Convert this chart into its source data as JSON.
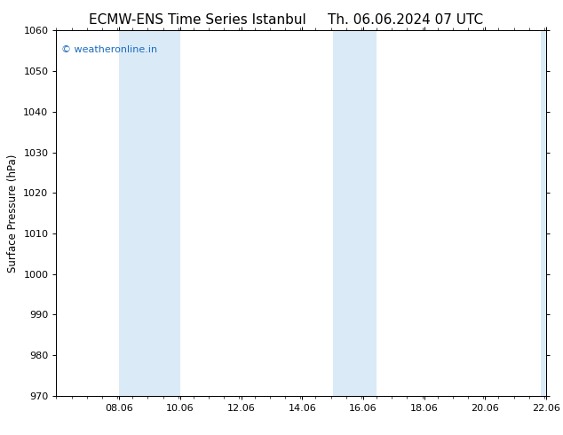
{
  "title_left": "ECMW-ENS Time Series Istanbul",
  "title_right": "Th. 06.06.2024 07 UTC",
  "ylabel": "Surface Pressure (hPa)",
  "ylim": [
    970,
    1060
  ],
  "yticks": [
    970,
    980,
    990,
    1000,
    1010,
    1020,
    1030,
    1040,
    1050,
    1060
  ],
  "xlim": [
    6.0,
    22.06
  ],
  "xtick_labels": [
    "08.06",
    "10.06",
    "12.06",
    "14.06",
    "16.06",
    "18.06",
    "20.06",
    "22.06"
  ],
  "xtick_positions": [
    8.06,
    10.06,
    12.06,
    14.06,
    16.06,
    18.06,
    20.06,
    22.06
  ],
  "shaded_bands": [
    {
      "xmin": 8.06,
      "xmax": 10.06
    },
    {
      "xmin": 15.06,
      "xmax": 16.5
    },
    {
      "xmin": 21.9,
      "xmax": 22.06
    }
  ],
  "band_color": "#daeaf7",
  "background_color": "#ffffff",
  "watermark": "© weatheronline.in",
  "watermark_color": "#1a6bbd",
  "watermark_fontsize": 8,
  "title_fontsize": 11,
  "ylabel_fontsize": 8.5,
  "tick_fontsize": 8
}
